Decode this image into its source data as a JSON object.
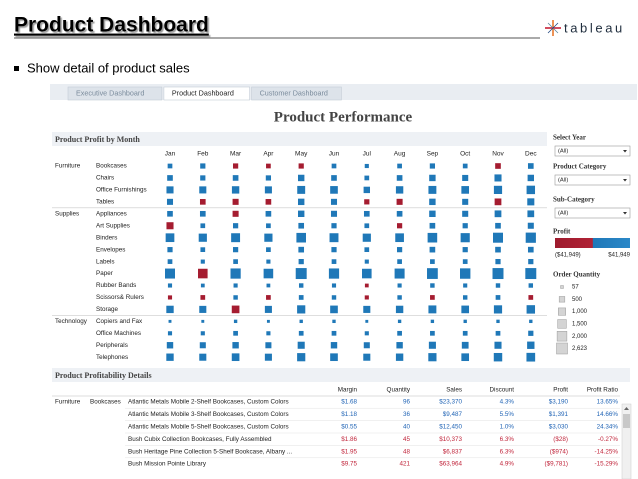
{
  "header": {
    "title": "Product Dashboard",
    "logo": "tableau"
  },
  "bullet": "Show detail of product sales",
  "tabs": [
    {
      "label": "Executive Dashboard",
      "active": false
    },
    {
      "label": "Product Dashboard",
      "active": true
    },
    {
      "label": "Customer Dashboard",
      "active": false
    }
  ],
  "dashboard_title": "Product Performance",
  "chart_data": {
    "type": "matrix",
    "title": "Product Profit by Month",
    "x": [
      "Jan",
      "Feb",
      "Mar",
      "Apr",
      "May",
      "Jun",
      "Jul",
      "Aug",
      "Sep",
      "Oct",
      "Nov",
      "Dec"
    ],
    "color_key": {
      "b": "#1f78b8",
      "r": "#a51c30"
    },
    "groups": [
      {
        "name": "Furniture",
        "rows": [
          {
            "name": "Bookcases",
            "values": [
              300,
              400,
              400,
              300,
              400,
              300,
              200,
              300,
              400,
              300,
              500,
              500
            ],
            "colors": "bbrrrbbbbbrb"
          },
          {
            "name": "Chairs",
            "values": [
              500,
              400,
              500,
              400,
              700,
              500,
              300,
              500,
              700,
              600,
              900,
              700
            ],
            "colors": "bbbbbbbbbbbb"
          },
          {
            "name": "Office Furnishings",
            "values": [
              900,
              900,
              1000,
              900,
              1200,
              1100,
              700,
              1000,
              1200,
              1100,
              1300,
              1400
            ],
            "colors": "bbbbbbbbbbbb"
          },
          {
            "name": "Tables",
            "values": [
              600,
              500,
              600,
              500,
              700,
              600,
              400,
              600,
              700,
              600,
              800,
              900
            ],
            "colors": "brrrbbrrbbrb"
          }
        ]
      },
      {
        "name": "Supplies",
        "rows": [
          {
            "name": "Appliances",
            "values": [
              500,
              500,
              600,
              500,
              700,
              600,
              500,
              500,
              700,
              600,
              800,
              800
            ],
            "colors": "bbrbbbbbbbbb"
          },
          {
            "name": "Art Supplies",
            "values": [
              900,
              300,
              400,
              300,
              500,
              400,
              300,
              400,
              500,
              400,
              500,
              600
            ],
            "colors": "rbbbbbbrbbbb"
          },
          {
            "name": "Binders",
            "values": [
              1500,
              1300,
              1600,
              1300,
              1900,
              1600,
              1300,
              1500,
              1900,
              1700,
              2100,
              2200
            ],
            "colors": "bbbbbbbbbbbb"
          },
          {
            "name": "Envelopes",
            "values": [
              400,
              300,
              400,
              300,
              500,
              400,
              300,
              400,
              500,
              400,
              500,
              500
            ],
            "colors": "bbbbbbbbbbbb"
          },
          {
            "name": "Labels",
            "values": [
              300,
              200,
              300,
              200,
              400,
              300,
              200,
              300,
              300,
              300,
              400,
              400
            ],
            "colors": "bbbbbbbbbbbb"
          },
          {
            "name": "Paper",
            "values": [
              2100,
              1900,
              2200,
              1900,
              2600,
              2200,
              1900,
              2100,
              2500,
              2300,
              2600,
              2600
            ],
            "colors": "brbbbbbbbbbb"
          },
          {
            "name": "Rubber Bands",
            "values": [
              200,
              150,
              200,
              150,
              250,
              200,
              150,
              200,
              250,
              200,
              250,
              250
            ],
            "colors": "bbbbbbrbbbbb"
          },
          {
            "name": "Scissors& Rulers",
            "values": [
              200,
              300,
              250,
              300,
              300,
              250,
              200,
              250,
              300,
              250,
              300,
              300
            ],
            "colors": "rrbrbbrbrbbr"
          },
          {
            "name": "Storage",
            "values": [
              1000,
              900,
              1100,
              900,
              1300,
              1100,
              900,
              1000,
              1200,
              1100,
              1300,
              1400
            ],
            "colors": "bbrbbbbbbbbb"
          }
        ]
      },
      {
        "name": "Technology",
        "rows": [
          {
            "name": "Copiers and Fax",
            "values": [
              57,
              57,
              100,
              57,
              100,
              100,
              57,
              100,
              100,
              100,
              100,
              100
            ],
            "colors": "bbbbbbbbbbbb"
          },
          {
            "name": "Office Machines",
            "values": [
              200,
              200,
              300,
              200,
              300,
              300,
              200,
              300,
              300,
              300,
              300,
              400
            ],
            "colors": "bbbbbbbbbbbb"
          },
          {
            "name": "Peripherals",
            "values": [
              700,
              600,
              700,
              600,
              900,
              700,
              600,
              700,
              900,
              800,
              900,
              1000
            ],
            "colors": "bbbbbbbbbbbb"
          },
          {
            "name": "Telephones",
            "values": [
              1000,
              900,
              1100,
              900,
              1300,
              1100,
              900,
              1000,
              1300,
              1100,
              1400,
              1500
            ],
            "colors": "bbbbbbbbbbbb"
          }
        ]
      }
    ],
    "size_legend": {
      "title": "Order Quantity",
      "ticks": [
        57,
        500,
        {
          "value": 1000,
          "label": "1,000"
        },
        {
          "value": 1500,
          "label": "1,500"
        },
        {
          "value": 2000,
          "label": "2,000"
        },
        {
          "value": 2623,
          "label": "2,623"
        }
      ]
    }
  },
  "filters": [
    {
      "label": "Select Year",
      "value": "(All)"
    },
    {
      "label": "Product Category",
      "value": "(All)"
    },
    {
      "label": "Sub-Category",
      "value": "(All)"
    }
  ],
  "profit_legend": {
    "title": "Profit",
    "min": {
      "value": -41949,
      "label": "($41,949)"
    },
    "max": {
      "value": 41949,
      "label": "$41,949"
    }
  },
  "details": {
    "title": "Product Profitability Details",
    "category": "Furniture",
    "subcategory": "Bookcases",
    "columns": [
      "Margin",
      "Quantity",
      "Sales",
      "Discount",
      "Profit",
      "Profit Ratio"
    ],
    "rows": [
      {
        "product": "Atlantic Metals Mobile 2-Shelf Bookcases, Custom Colors",
        "cells": [
          "$1.68",
          "96",
          "$23,370",
          "4.3%",
          "$3,190",
          "13.65%"
        ],
        "loss": false
      },
      {
        "product": "Atlantic Metals Mobile 3-Shelf Bookcases, Custom Colors",
        "cells": [
          "$1.18",
          "36",
          "$9,487",
          "5.5%",
          "$1,391",
          "14.66%"
        ],
        "loss": false
      },
      {
        "product": "Atlantic Metals Mobile 5-Shelf Bookcases, Custom Colors",
        "cells": [
          "$0.55",
          "40",
          "$12,450",
          "1.0%",
          "$3,030",
          "24.34%"
        ],
        "loss": false
      },
      {
        "product": "Bush Cubix Collection Bookcases, Fully Assembled",
        "cells": [
          "$1.86",
          "45",
          "$10,373",
          "6.3%",
          "($28)",
          "-0.27%"
        ],
        "loss": true
      },
      {
        "product": "Bush Heritage Pine Collection 5-Shelf Bookcase, Albany ...",
        "cells": [
          "$1.95",
          "48",
          "$6,837",
          "6.3%",
          "($974)",
          "-14.25%"
        ],
        "loss": true
      },
      {
        "product": "Bush Mission Pointe Library",
        "cells": [
          "$9.75",
          "421",
          "$63,964",
          "4.9%",
          "($9,781)",
          "-15.29%"
        ],
        "loss": true
      }
    ]
  }
}
